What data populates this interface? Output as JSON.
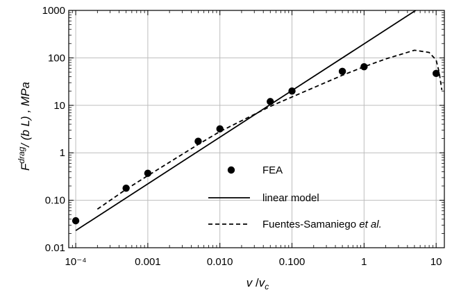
{
  "chart_data": {
    "type": "scatter",
    "xscale": "log",
    "yscale": "log",
    "xlim": [
      8e-05,
      13
    ],
    "ylim": [
      0.01,
      1000
    ],
    "grid": true,
    "legend_position": "bottom-right",
    "xlabel": "v / v_c",
    "ylabel": "F^drag / (b L) , MPa",
    "x_ticks": [
      0.0001,
      0.001,
      0.01,
      0.1,
      1,
      10
    ],
    "x_tick_labels": [
      "10⁻⁴",
      "0.001",
      "0.010",
      "0.100",
      "1",
      "10"
    ],
    "y_ticks": [
      0.01,
      0.1,
      1,
      10,
      100,
      1000
    ],
    "y_tick_labels": [
      "0.01",
      "0.10",
      "1",
      "10",
      "100",
      "1000"
    ],
    "series": [
      {
        "name": "FEA",
        "kind": "points",
        "x": [
          0.0001,
          0.0005,
          0.001,
          0.005,
          0.01,
          0.05,
          0.1,
          0.5,
          1,
          10
        ],
        "y": [
          0.037,
          0.18,
          0.37,
          1.75,
          3.2,
          12,
          20,
          52,
          65,
          47
        ]
      },
      {
        "name": "linear model",
        "kind": "solid-line",
        "x": [
          0.0001,
          5.2
        ],
        "y": [
          0.023,
          1000
        ]
      },
      {
        "name": "Fuentes-Samaniego et al.",
        "kind": "dashed-line",
        "x": [
          0.0002,
          0.0005,
          0.001,
          0.005,
          0.01,
          0.05,
          0.1,
          0.5,
          1,
          2,
          5,
          8,
          10,
          11,
          12
        ],
        "y": [
          0.065,
          0.17,
          0.33,
          1.5,
          2.8,
          9.5,
          15,
          43,
          65,
          95,
          145,
          130,
          90,
          50,
          21
        ]
      }
    ]
  }
}
